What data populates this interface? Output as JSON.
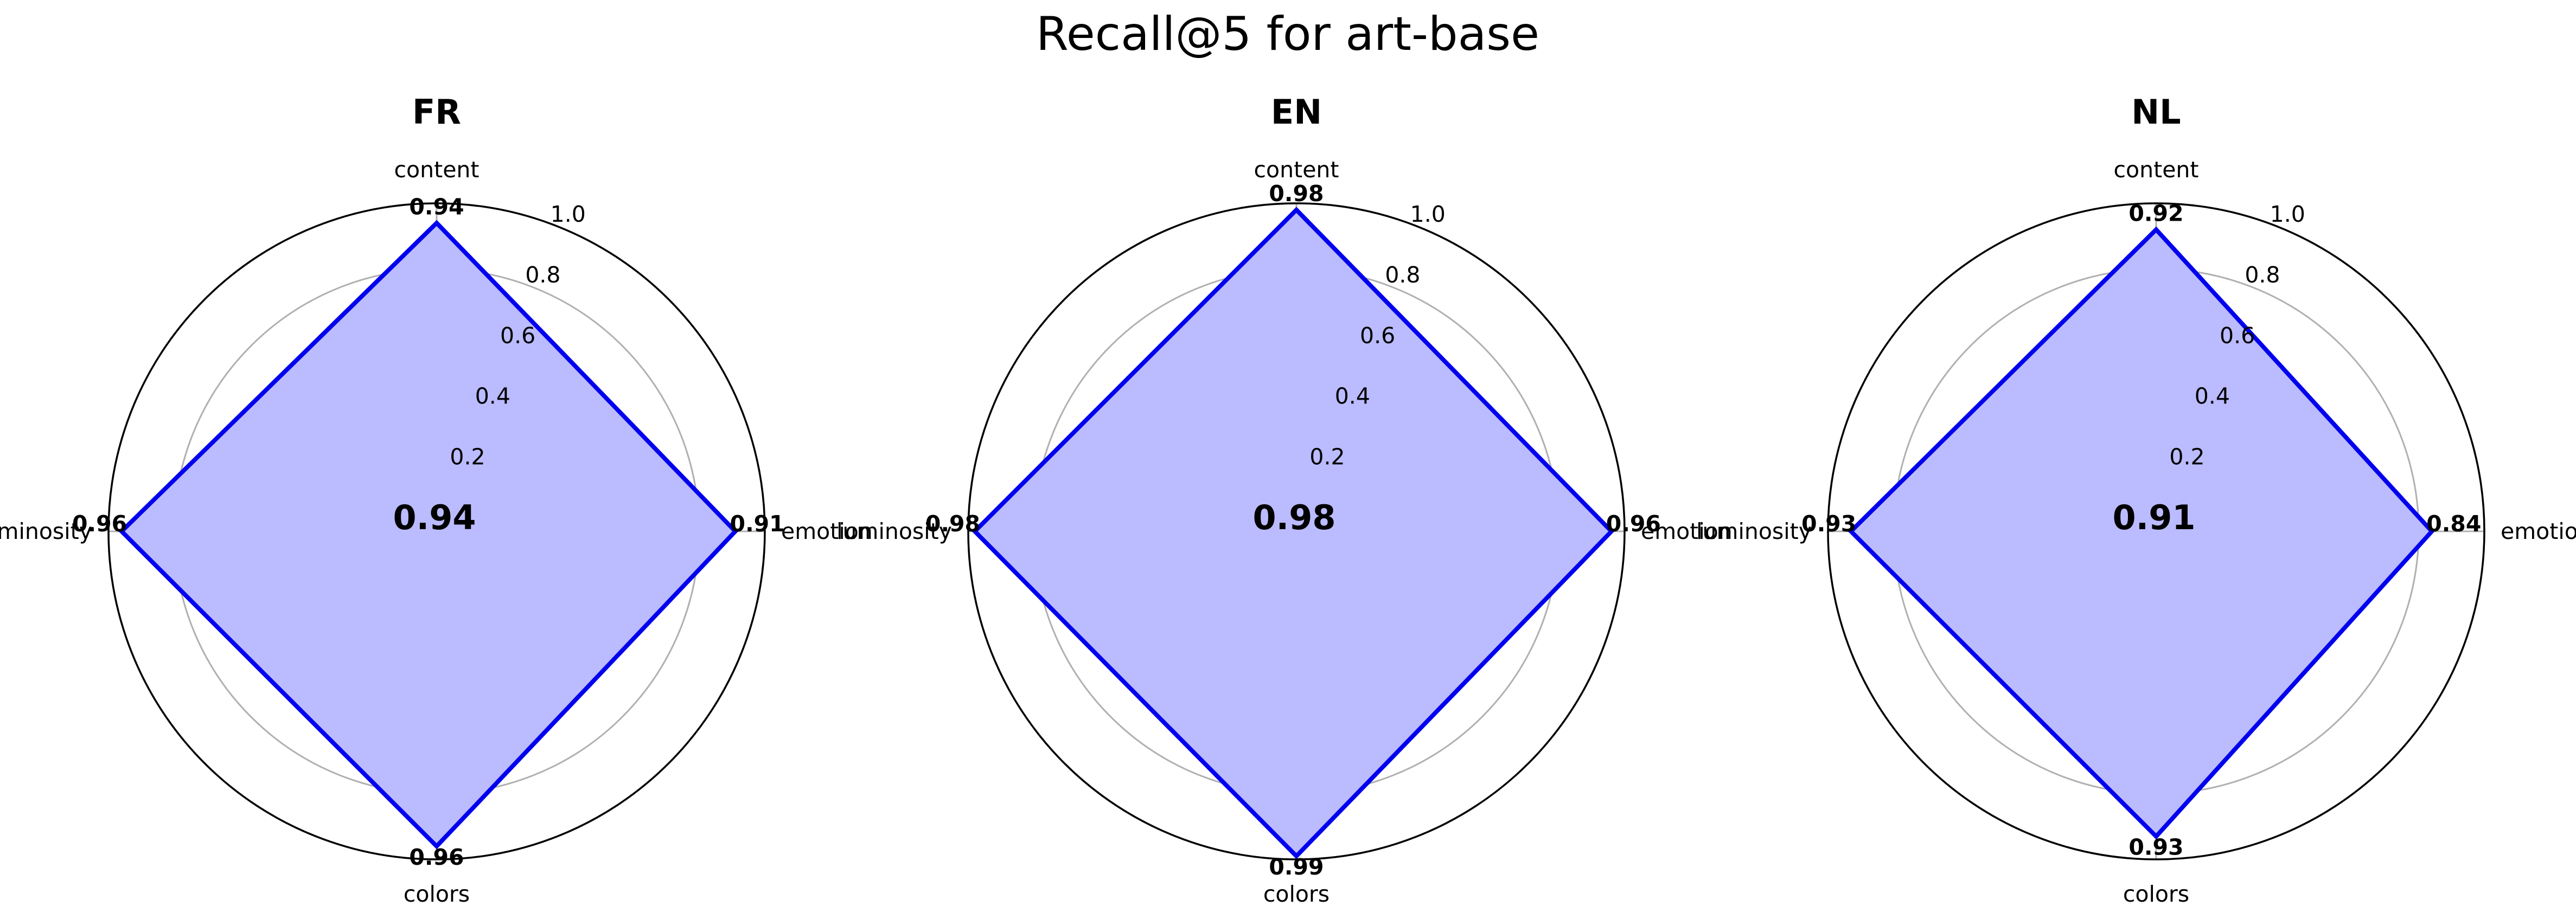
{
  "chart_data": {
    "type": "radar",
    "title": "Recall@5 for art-base",
    "axes": [
      "content",
      "emotion",
      "colors",
      "luminosity"
    ],
    "rlim": [
      0,
      1.0
    ],
    "rticks": [
      "0.2",
      "0.4",
      "0.6",
      "0.8",
      "1.0"
    ],
    "grid": true,
    "colors": {
      "line": "#0000ee",
      "fill": "#bbbbff",
      "grid": "#b0b0b0",
      "frame": "#000000"
    },
    "panels": [
      {
        "title": "FR",
        "center_label": "0.94",
        "values": [
          0.94,
          0.91,
          0.96,
          0.96
        ],
        "value_labels": [
          "0.94",
          "0.91",
          "0.96",
          "0.96"
        ]
      },
      {
        "title": "EN",
        "center_label": "0.98",
        "values": [
          0.98,
          0.96,
          0.99,
          0.98
        ],
        "value_labels": [
          "0.98",
          "0.96",
          "0.99",
          "0.98"
        ]
      },
      {
        "title": "NL",
        "center_label": "0.91",
        "values": [
          0.92,
          0.84,
          0.93,
          0.93
        ],
        "value_labels": [
          "0.92",
          "0.84",
          "0.93",
          "0.93"
        ]
      }
    ]
  }
}
